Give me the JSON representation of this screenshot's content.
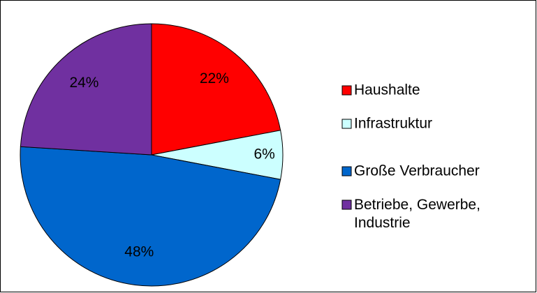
{
  "chart_data": {
    "type": "pie",
    "categories": [
      "Haushalte",
      "Infrastruktur",
      "Große Verbraucher",
      "Betriebe, Gewerbe, Industrie"
    ],
    "values": [
      22,
      6,
      48,
      24
    ],
    "value_labels": [
      "22%",
      "6%",
      "48%",
      "24%"
    ],
    "colors": [
      "#ff0000",
      "#ccffff",
      "#0066cc",
      "#7030a0"
    ],
    "legend": "right"
  }
}
